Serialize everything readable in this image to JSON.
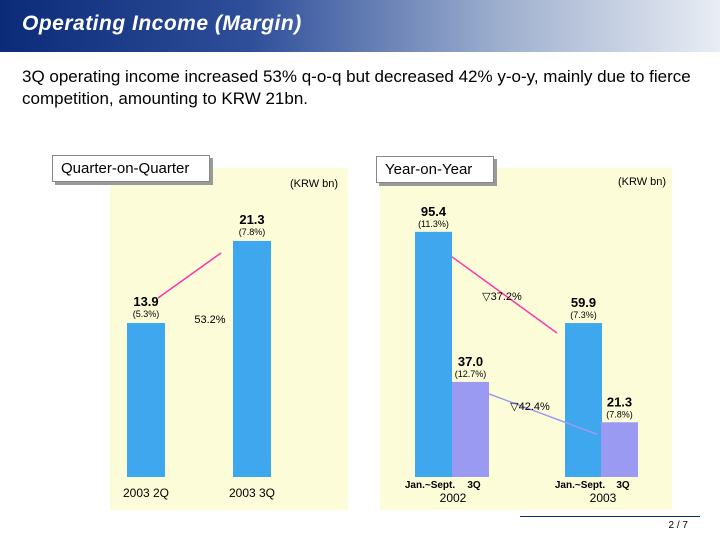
{
  "header": {
    "title": "Operating Income (Margin)",
    "headline": "3Q operating income increased 53% q-o-q but decreased 42% y-o-y, mainly due to fierce competition, amounting to KRW 21bn."
  },
  "colors": {
    "bar_light_blue": "#3fa7ee",
    "bar_purple": "#9a9af3",
    "panel_bg": "#fdfcd8"
  },
  "footer": {
    "page": "2 / 7"
  },
  "chart_data": [
    {
      "type": "bar",
      "title": "Quarter-on-Quarter",
      "unit": "(KRW bn)",
      "categories": [
        "2003 2Q",
        "2003 3Q"
      ],
      "values": [
        13.9,
        21.3
      ],
      "value_labels": [
        "13.9",
        "21.3"
      ],
      "margin_labels": [
        "(5.3%)",
        "(7.8%)"
      ],
      "change_label": "53.2%",
      "ylim": [
        0,
        25
      ]
    },
    {
      "type": "bar",
      "title": "Year-on-Year",
      "unit": "(KRW bn)",
      "groups": [
        {
          "label": "Jan.~Sept.",
          "quarter_label": "3Q",
          "year": "2002"
        },
        {
          "label": "Jan.~Sept.",
          "quarter_label": "3Q",
          "year": "2003"
        }
      ],
      "series": [
        {
          "name": "Jan.~Sept.",
          "values": [
            95.4,
            59.9
          ],
          "value_labels": [
            "95.4",
            "59.9"
          ],
          "margin_labels": [
            "(11.3%)",
            "(7.3%)"
          ]
        },
        {
          "name": "3Q",
          "values": [
            37.0,
            21.3
          ],
          "value_labels": [
            "37.0",
            "21.3"
          ],
          "margin_labels": [
            "(12.7%)",
            "(7.8%)"
          ]
        }
      ],
      "change_labels": [
        "▽37.2%",
        "▽42.4%"
      ],
      "ylim": [
        0,
        100
      ]
    }
  ]
}
